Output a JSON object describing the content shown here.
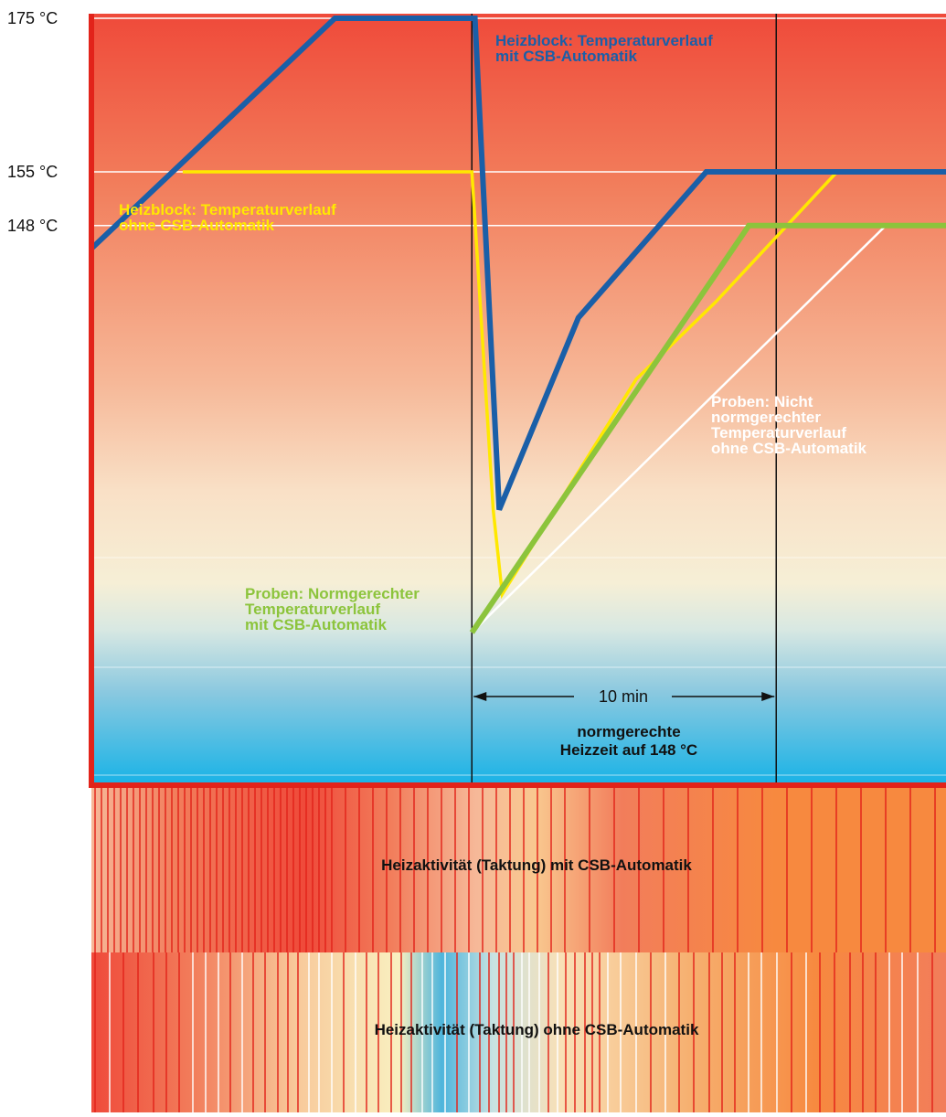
{
  "chart_data": {
    "type": "line",
    "y_axis": {
      "ticks": [
        {
          "value": 175,
          "label": "175 °C"
        },
        {
          "value": 155,
          "label": "155 °C"
        },
        {
          "value": 148,
          "label": "148 °C"
        }
      ]
    },
    "series": [
      {
        "key": "block_with",
        "name": "Heizblock: Temperaturverlauf mit CSB-Automatik",
        "label_lines": [
          "Heizblock: Temperaturverlauf",
          "mit CSB-Automatik"
        ],
        "color": "#1a5fa8",
        "points": [
          [
            0,
            145
          ],
          [
            8.0,
            175
          ],
          [
            12.6,
            175
          ],
          [
            13.4,
            111
          ],
          [
            16.0,
            136
          ],
          [
            20.2,
            155
          ],
          [
            31.4,
            155
          ]
        ]
      },
      {
        "key": "block_without",
        "name": "Heizblock: Temperaturverlauf ohne CSB-Automatik",
        "label_lines": [
          "Heizblock: Temperaturverlauf",
          "ohne CSB-Automatik"
        ],
        "color": "#ffe800",
        "points": [
          [
            3.0,
            155
          ],
          [
            12.5,
            155
          ],
          [
            13.2,
            111
          ],
          [
            13.5,
            100
          ],
          [
            17.9,
            128
          ],
          [
            20.5,
            138
          ],
          [
            24.5,
            155
          ]
        ]
      },
      {
        "key": "samples_with",
        "name": "Proben: Normgerechter Temperaturverlauf mit CSB-Automatik",
        "label_lines": [
          "Proben: Normgerechter",
          "Temperaturverlauf",
          "mit CSB-Automatik"
        ],
        "color": "#8cc43c",
        "points": [
          [
            12.5,
            95
          ],
          [
            21.6,
            148
          ],
          [
            31.4,
            148
          ]
        ]
      },
      {
        "key": "samples_without",
        "name": "Proben: Nicht normgerechter Temperaturverlauf ohne CSB-Automatik",
        "label_lines": [
          "Proben: Nicht",
          "normgerechter",
          "Temperaturverlauf",
          "ohne CSB-Automatik"
        ],
        "color": "#ffffff",
        "points": [
          [
            12.5,
            95
          ],
          [
            26.1,
            148
          ]
        ]
      }
    ],
    "annotations": {
      "interval_label": "10 min",
      "interval_x": [
        12.5,
        22.5
      ],
      "heating_time_lines": [
        "normgerechte",
        "Heizzeit auf 148 °C"
      ]
    },
    "activity_bars": [
      {
        "label": "Heizaktivität (Taktung) mit CSB-Automatik"
      },
      {
        "label": "Heizaktivität (Taktung) ohne CSB-Automatik"
      }
    ],
    "colors": {
      "axis": "#e2231a",
      "gradient_top": "#ef4a3a",
      "gradient_bottom": "#1ab3e6"
    }
  }
}
